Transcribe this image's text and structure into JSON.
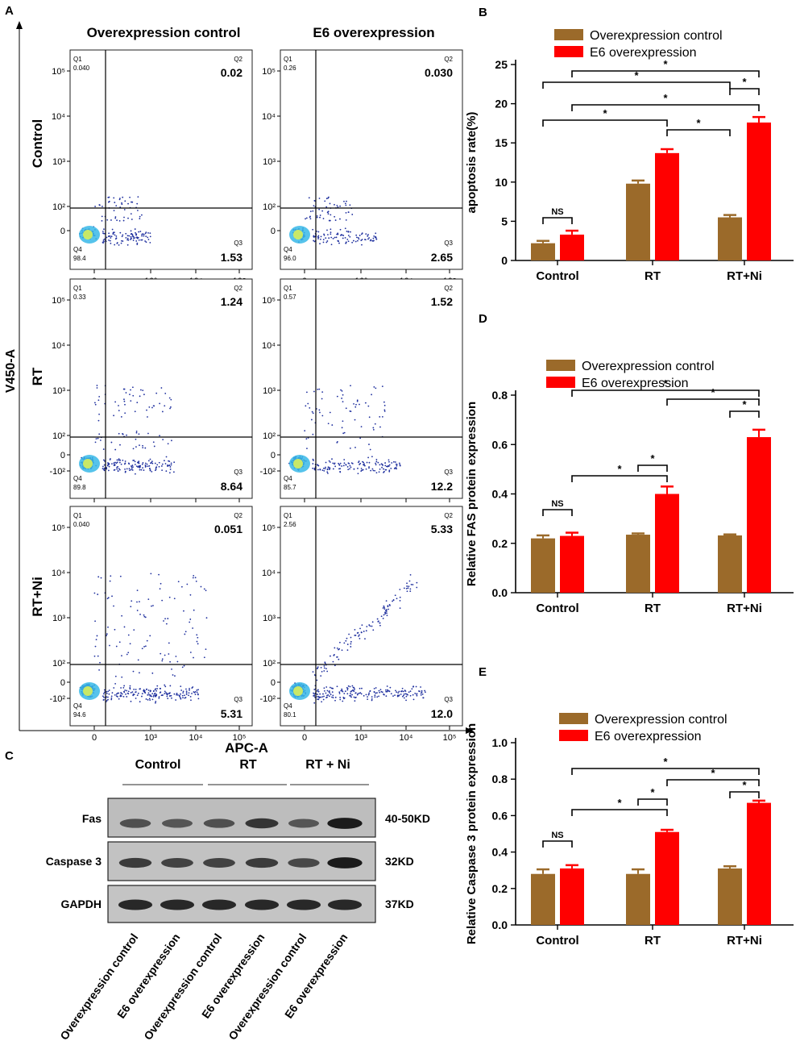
{
  "panel_letters": {
    "a": "A",
    "b": "B",
    "c": "C",
    "d": "D",
    "e": "E"
  },
  "flow": {
    "y_axis_label": "V450-A",
    "x_axis_label": "APC-A",
    "column_titles": [
      "Overexpression control",
      "E6 overexpression"
    ],
    "row_labels": [
      "Control",
      "RT",
      "RT+Ni"
    ],
    "quadrant_names": {
      "q1": "Q1",
      "q2": "Q2",
      "q3": "Q3",
      "q4": "Q4"
    },
    "y_ticks_plain": [
      "10⁵",
      "10⁴",
      "10³",
      "10²",
      "0"
    ],
    "y_ticks_neg": [
      "10⁵",
      "10⁴",
      "10³",
      "10²",
      "0",
      "-10²"
    ],
    "x_ticks": [
      "0",
      "10³",
      "10⁴",
      "10⁵"
    ],
    "plots": [
      {
        "row": "Control",
        "condition": "Overexpression control",
        "Q1": "0.040",
        "Q2": "0.02",
        "Q3": "1.53",
        "Q4": "98.4"
      },
      {
        "row": "Control",
        "condition": "E6 overexpression",
        "Q1": "0.26",
        "Q2": "0.030",
        "Q3": "2.65",
        "Q4": "96.0"
      },
      {
        "row": "RT",
        "condition": "Overexpression control",
        "Q1": "0.33",
        "Q2": "1.24",
        "Q3": "8.64",
        "Q4": "89.8"
      },
      {
        "row": "RT",
        "condition": "E6 overexpression",
        "Q1": "0.57",
        "Q2": "1.52",
        "Q3": "12.2",
        "Q4": "85.7"
      },
      {
        "row": "RT+Ni",
        "condition": "Overexpression control",
        "Q1": "0.040",
        "Q2": "0.051",
        "Q3": "5.31",
        "Q4": "94.6"
      },
      {
        "row": "RT+Ni",
        "condition": "E6 overexpression",
        "Q1": "2.56",
        "Q2": "5.33",
        "Q3": "12.0",
        "Q4": "80.1"
      }
    ]
  },
  "western": {
    "group_labels": [
      "Control",
      "RT",
      "RT + Ni"
    ],
    "rows": [
      {
        "protein": "Fas",
        "size": "40-50KD"
      },
      {
        "protein": "Caspase 3",
        "size": "32KD"
      },
      {
        "protein": "GAPDH",
        "size": "37KD"
      }
    ],
    "lane_labels": [
      "Overexpression control",
      "E6 overexpression",
      "Overexpression control",
      "E6 overexpression",
      "Overexpression control",
      "E6 overexpression"
    ],
    "band_intensity": [
      [
        0.55,
        0.5,
        0.55,
        0.75,
        0.5,
        0.95
      ],
      [
        0.7,
        0.65,
        0.65,
        0.7,
        0.6,
        0.95
      ],
      [
        0.85,
        0.85,
        0.85,
        0.85,
        0.85,
        0.85
      ]
    ]
  },
  "colors": {
    "control": "#9B6A2A",
    "e6": "#FF0000"
  },
  "chart_data": [
    {
      "type": "bar",
      "panel": "B",
      "title": "",
      "xlabel": "",
      "ylabel": "apoptosis rate(%)",
      "categories": [
        "Control",
        "RT",
        "RT+Ni"
      ],
      "series": [
        {
          "name": "Overexpression control",
          "values": [
            2.2,
            9.8,
            5.5
          ],
          "errors": [
            0.3,
            0.4,
            0.3
          ]
        },
        {
          "name": "E6 overexpression",
          "values": [
            3.3,
            13.7,
            17.6
          ],
          "errors": [
            0.5,
            0.5,
            0.7
          ]
        }
      ],
      "ylim": [
        0,
        25
      ],
      "yticks": [
        0,
        5,
        10,
        15,
        20,
        25
      ],
      "annotations": [
        {
          "from": 0,
          "to": 1,
          "label": "NS"
        },
        {
          "from": 3,
          "to": 4,
          "label": "*"
        },
        {
          "from": 0,
          "to": 3,
          "label": "*"
        },
        {
          "from": 1,
          "to": 5,
          "label": "*"
        },
        {
          "from": 4,
          "to": 5,
          "label": "*"
        },
        {
          "from": 0,
          "to": 4,
          "label": "*"
        },
        {
          "from": 1,
          "to": 5,
          "label": "*"
        }
      ]
    },
    {
      "type": "bar",
      "panel": "D",
      "title": "",
      "xlabel": "",
      "ylabel": "Relative FAS protein expression",
      "categories": [
        "Control",
        "RT",
        "RT+Ni"
      ],
      "series": [
        {
          "name": "Overexpression control",
          "values": [
            0.22,
            0.235,
            0.232
          ],
          "errors": [
            0.012,
            0.005,
            0.004
          ]
        },
        {
          "name": "E6 overexpression",
          "values": [
            0.23,
            0.4,
            0.63
          ],
          "errors": [
            0.013,
            0.03,
            0.03
          ]
        }
      ],
      "ylim": [
        0,
        0.8
      ],
      "yticks": [
        0.0,
        0.2,
        0.4,
        0.6,
        0.8
      ],
      "annotations": [
        {
          "from": 0,
          "to": 1,
          "label": "NS"
        },
        {
          "from": 1,
          "to": 3,
          "label": "*"
        },
        {
          "from": 2,
          "to": 3,
          "label": "*"
        },
        {
          "from": 1,
          "to": 5,
          "label": "*"
        },
        {
          "from": 3,
          "to": 5,
          "label": "*"
        },
        {
          "from": 4,
          "to": 5,
          "label": "*"
        }
      ]
    },
    {
      "type": "bar",
      "panel": "E",
      "title": "",
      "xlabel": "",
      "ylabel": "Relative Caspase 3 protein expression",
      "categories": [
        "Control",
        "RT",
        "RT+Ni"
      ],
      "series": [
        {
          "name": "Overexpression control",
          "values": [
            0.28,
            0.28,
            0.31
          ],
          "errors": [
            0.025,
            0.025,
            0.012
          ]
        },
        {
          "name": "E6 overexpression",
          "values": [
            0.31,
            0.51,
            0.67
          ],
          "errors": [
            0.018,
            0.012,
            0.012
          ]
        }
      ],
      "ylim": [
        0,
        1.0
      ],
      "yticks": [
        0.0,
        0.2,
        0.4,
        0.6,
        0.8,
        1.0
      ],
      "annotations": [
        {
          "from": 0,
          "to": 1,
          "label": "NS"
        },
        {
          "from": 1,
          "to": 3,
          "label": "*"
        },
        {
          "from": 2,
          "to": 3,
          "label": "*"
        },
        {
          "from": 1,
          "to": 5,
          "label": "*"
        },
        {
          "from": 3,
          "to": 5,
          "label": "*"
        },
        {
          "from": 4,
          "to": 5,
          "label": "*"
        }
      ]
    }
  ]
}
